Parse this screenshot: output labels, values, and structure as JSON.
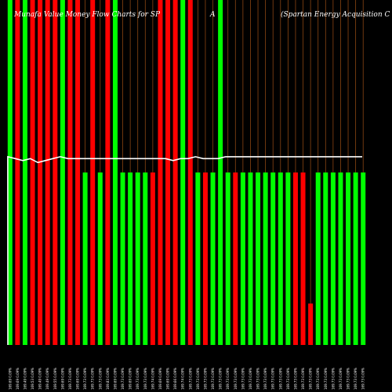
{
  "chart_data": {
    "type": "bar",
    "title_left": "Munafa Value Money Flow Charts for SP",
    "title_mid": "A",
    "title_right": "(Spartan Energy Acquisition C",
    "xlabel": "",
    "ylabel": "",
    "grid": false,
    "colors": {
      "up": "#00ff00",
      "down": "#ff0000",
      "line": "#ffffff",
      "divider": "#8b4513",
      "background": "#000000"
    },
    "series": [
      {
        "values": [
          100,
          100,
          100,
          100,
          100,
          100,
          100,
          100,
          100,
          100,
          50,
          100,
          50,
          100,
          100,
          50,
          50,
          50,
          50,
          50,
          100,
          100,
          100,
          100,
          100,
          50,
          50,
          50,
          100,
          50,
          50,
          50,
          50,
          50,
          50,
          50,
          50,
          50,
          50,
          50,
          12,
          50,
          50,
          50,
          50,
          50,
          50,
          50
        ],
        "directions": [
          "up",
          "down",
          "up",
          "down",
          "down",
          "down",
          "down",
          "up",
          "down",
          "down",
          "up",
          "down",
          "up",
          "down",
          "up",
          "up",
          "up",
          "up",
          "up",
          "down",
          "down",
          "down",
          "down",
          "up",
          "down",
          "up",
          "down",
          "up",
          "up",
          "up",
          "down",
          "up",
          "up",
          "up",
          "up",
          "up",
          "up",
          "up",
          "down",
          "down",
          "down",
          "up",
          "up",
          "up",
          "up",
          "up",
          "up",
          "up"
        ]
      }
    ],
    "line_values": [
      98,
      97,
      96,
      97,
      95,
      96,
      97,
      98,
      97,
      97,
      97,
      97,
      97,
      97,
      97,
      97,
      97,
      97,
      97,
      97,
      97,
      97,
      96,
      97,
      97,
      98,
      97,
      97,
      97,
      98,
      98,
      98,
      98,
      98,
      98,
      98,
      98,
      98,
      98,
      98,
      98,
      98,
      98,
      98,
      98,
      98,
      98,
      98
    ],
    "line_start_value": 0,
    "categories": [
      "169.69 0.09%",
      "169.69 0.09%",
      "169.49 0.09%",
      "169.53 0.09%",
      "169.49 0.09%",
      "169.49 0.09%",
      "169.55 0.09%",
      "169.69 0.09%",
      "169.73 0.09%",
      "169.69 0.09%",
      "169.73 0.09%",
      "169.73 0.09%",
      "169.73 0.09%",
      "169.83 0.09%",
      "169.69 0.09%",
      "169.73 0.09%",
      "169.69 0.09%",
      "169.73 0.09%",
      "169.73 0.09%",
      "169.74 0.09%",
      "169.69 0.09%",
      "169.69 0.09%",
      "169.66 0.09%",
      "169.74 0.09%",
      "169.73 0.09%",
      "169.73 0.09%",
      "169.73 0.09%",
      "169.73 0.09%",
      "169.73 0.09%",
      "169.73 0.09%",
      "169.73 0.09%",
      "169.73 0.09%",
      "169.73 0.09%",
      "169.73 0.09%",
      "169.73 0.09%",
      "169.73 0.09%",
      "169.73 0.09%",
      "169.73 0.09%",
      "169.73 0.09%",
      "169.73 0.09%",
      "169.73 0.09%",
      "169.73 0.09%",
      "169.73 0.09%",
      "169.73 0.09%",
      "169.73 0.09%",
      "169.73 0.09%",
      "169.73 0.09%",
      "169.73 0.09%"
    ]
  }
}
